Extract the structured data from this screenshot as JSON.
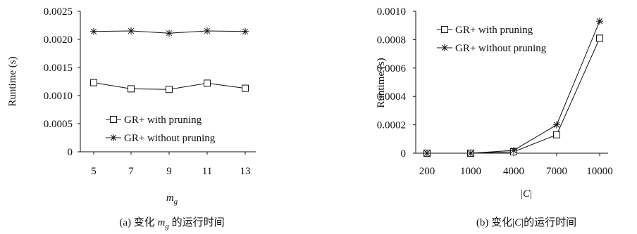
{
  "chart_data": [
    {
      "type": "line",
      "x": [
        "5",
        "7",
        "9",
        "11",
        "13"
      ],
      "xlabel": "m_g",
      "ylabel": "Runtime (s)",
      "ylim": [
        0,
        0.0025
      ],
      "yticks": [
        "0",
        "0.0005",
        "0.0010",
        "0.0015",
        "0.0020",
        "0.0025"
      ],
      "legend_position": "bottom",
      "series": [
        {
          "name": "GR+ with pruning",
          "marker": "square",
          "values": [
            0.00123,
            0.00112,
            0.00111,
            0.00122,
            0.00113
          ]
        },
        {
          "name": "GR+ without pruning",
          "marker": "star",
          "values": [
            0.00214,
            0.00215,
            0.00211,
            0.00215,
            0.00214
          ]
        }
      ],
      "caption": {
        "prefix": "(a)  变化 ",
        "var": "m",
        "sub": "g",
        "suffix": " 的运行时间"
      }
    },
    {
      "type": "line",
      "x": [
        "200",
        "1000",
        "4000",
        "7000",
        "10000"
      ],
      "xlabel": "|C|",
      "ylabel": "Runtime (s)",
      "ylim": [
        0,
        0.001
      ],
      "yticks": [
        "0",
        "0.0002",
        "0.0004",
        "0.0006",
        "0.0008",
        "0.0010"
      ],
      "legend_position": "top-left",
      "series": [
        {
          "name": "GR+ with pruning",
          "marker": "square",
          "values": [
            0,
            0,
            1e-05,
            0.00013,
            0.00081
          ]
        },
        {
          "name": "GR+ without pruning",
          "marker": "star",
          "values": [
            0,
            0,
            2e-05,
            0.0002,
            0.00093
          ]
        }
      ],
      "caption": {
        "prefix": "(b)  变化|",
        "var": "C",
        "sub": "",
        "suffix": "|的运行时间"
      }
    }
  ]
}
